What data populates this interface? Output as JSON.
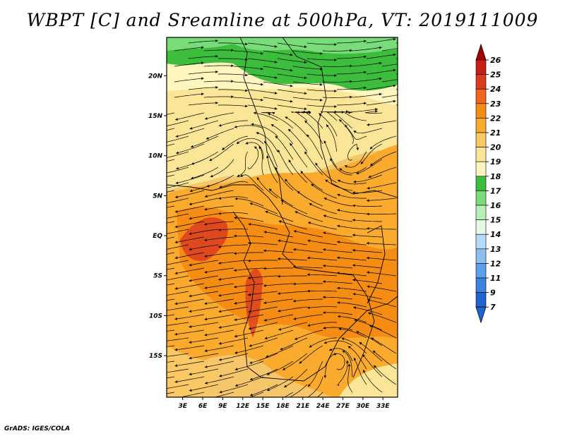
{
  "title": "WBPT [C] and Sreamline at 500hPa, VT: 2019111009",
  "credit": "GrADS: IGES/COLA",
  "map": {
    "lat_labels": [
      {
        "label": "20N",
        "value": 20
      },
      {
        "label": "15N",
        "value": 15
      },
      {
        "label": "10N",
        "value": 10
      },
      {
        "label": "5N",
        "value": 5
      },
      {
        "label": "EQ",
        "value": 0
      },
      {
        "label": "5S",
        "value": -5
      },
      {
        "label": "10S",
        "value": -10
      },
      {
        "label": "15S",
        "value": -15
      }
    ],
    "lon_labels": [
      {
        "label": "3E",
        "value": 3
      },
      {
        "label": "6E",
        "value": 6
      },
      {
        "label": "9E",
        "value": 9
      },
      {
        "label": "12E",
        "value": 12
      },
      {
        "label": "15E",
        "value": 15
      },
      {
        "label": "18E",
        "value": 18
      },
      {
        "label": "21E",
        "value": 21
      },
      {
        "label": "24E",
        "value": 24
      },
      {
        "label": "27E",
        "value": 27
      },
      {
        "label": "30E",
        "value": 30
      },
      {
        "label": "33E",
        "value": 33
      }
    ]
  },
  "colorbar": {
    "levels": [
      "26",
      "25",
      "24",
      "23",
      "22",
      "21",
      "20",
      "19",
      "18",
      "17",
      "16",
      "15",
      "14",
      "13",
      "12",
      "11",
      "9",
      "7"
    ],
    "colors": [
      "#a50000",
      "#c81e14",
      "#dc3c1e",
      "#f0641e",
      "#f58c14",
      "#faaa2d",
      "#fac864",
      "#fae696",
      "#fff5be",
      "#3cbe3c",
      "#78dc78",
      "#b4f0b4",
      "#e6fae6",
      "#b4dcfa",
      "#8cbef0",
      "#5aa0eb",
      "#3c82e1",
      "#1e64d2"
    ],
    "top_color": "#a50000",
    "bottom_color": "#1e64d2"
  }
}
